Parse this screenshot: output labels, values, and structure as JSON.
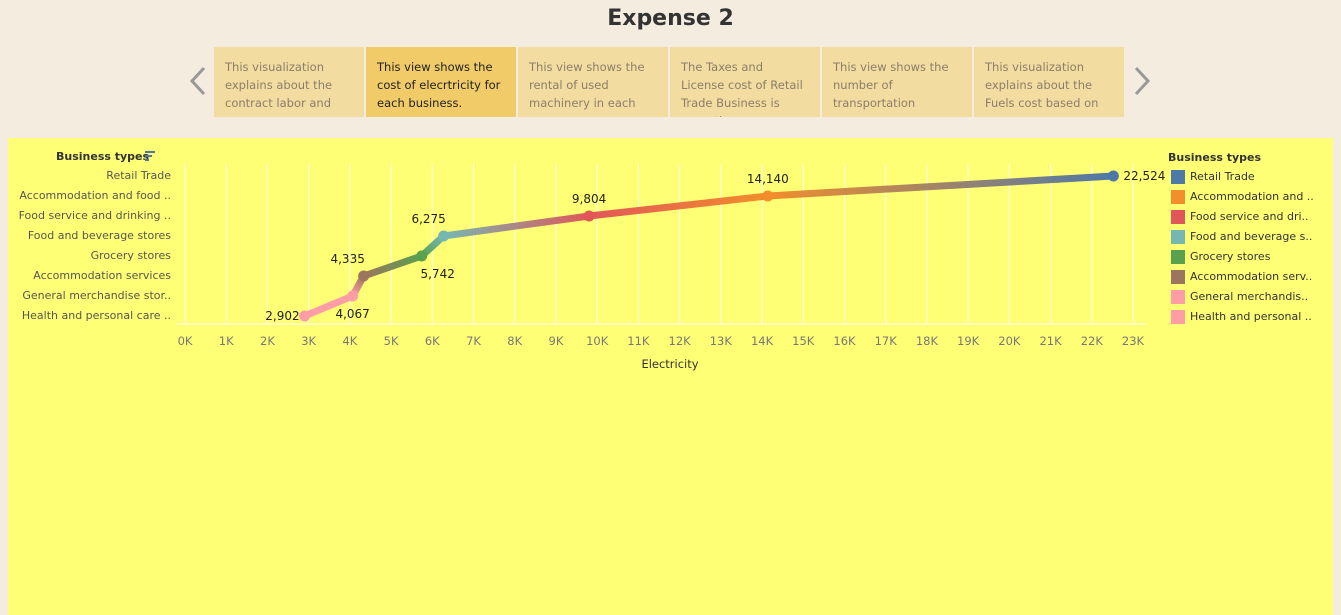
{
  "page": {
    "title": "Expense 2",
    "prev_label": "previous",
    "next_label": "next"
  },
  "captions": [
    {
      "text": "This visualization explains about the contract labor and",
      "active": false
    },
    {
      "text": "This view shows the cost of elecrtricity for each business.",
      "active": true
    },
    {
      "text": "This view shows the rental of used machinery in each",
      "active": false
    },
    {
      "text": "The Taxes and License cost of Retail Trade Business is more than",
      "active": false
    },
    {
      "text": "This view shows the number of transportation",
      "active": false
    },
    {
      "text": "This visualization explains about the Fuels cost based on",
      "active": false
    }
  ],
  "chart": {
    "row_header": "Business types",
    "rows": [
      "Retail Trade",
      "Accommodation and food ..",
      "Food service and drinking ..",
      "Food and beverage stores",
      "Grocery stores",
      "Accommodation services",
      "General merchandise stor..",
      "Health and personal care .."
    ],
    "legend_title": "Business types",
    "legend": [
      {
        "label": "Retail Trade",
        "color": "#4e79a7"
      },
      {
        "label": "Accommodation and ..",
        "color": "#f28e2b"
      },
      {
        "label": "Food service and dri..",
        "color": "#e15759"
      },
      {
        "label": "Food and beverage s..",
        "color": "#76b7b2"
      },
      {
        "label": "Grocery stores",
        "color": "#59a14f"
      },
      {
        "label": "Accommodation serv..",
        "color": "#9c755f"
      },
      {
        "label": "General merchandis..",
        "color": "#ff9da7"
      },
      {
        "label": "Health and personal ..",
        "color": "#ff9da7"
      }
    ],
    "x_ticks": [
      "0K",
      "1K",
      "2K",
      "3K",
      "4K",
      "5K",
      "6K",
      "7K",
      "8K",
      "9K",
      "10K",
      "11K",
      "12K",
      "13K",
      "14K",
      "15K",
      "16K",
      "17K",
      "18K",
      "19K",
      "20K",
      "21K",
      "22K",
      "23K"
    ],
    "x_axis_title": "Electricity"
  },
  "chart_data": {
    "type": "line",
    "title": "Expense 2",
    "xlabel": "Electricity",
    "ylabel": "Business types",
    "xlim": [
      0,
      23000
    ],
    "grid": true,
    "legend_position": "right",
    "points": [
      {
        "category": "Health and personal care ..",
        "x": 2902,
        "label": "2,902",
        "color": "#ff9da7"
      },
      {
        "category": "General merchandise stor..",
        "x": 4067,
        "label": "4,067",
        "color": "#ff9da7"
      },
      {
        "category": "Accommodation services",
        "x": 4335,
        "label": "4,335",
        "color": "#9c755f"
      },
      {
        "category": "Grocery stores",
        "x": 5742,
        "label": "5,742",
        "color": "#59a14f"
      },
      {
        "category": "Food and beverage stores",
        "x": 6275,
        "label": "6,275",
        "color": "#76b7b2"
      },
      {
        "category": "Food service and drinking ..",
        "x": 9804,
        "label": "9,804",
        "color": "#e15759"
      },
      {
        "category": "Accommodation and food ..",
        "x": 14140,
        "label": "14,140",
        "color": "#f28e2b"
      },
      {
        "category": "Retail Trade",
        "x": 22524,
        "label": "22,524",
        "color": "#4e79a7"
      }
    ]
  }
}
